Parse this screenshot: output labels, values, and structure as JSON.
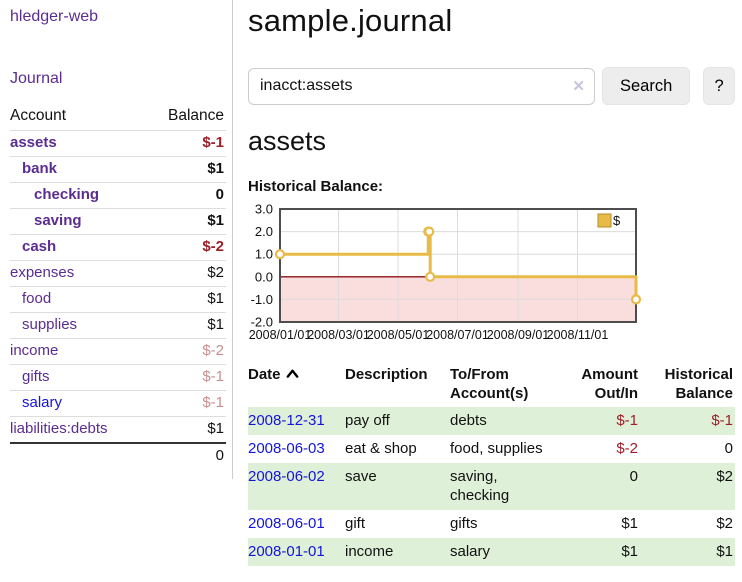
{
  "brand": "hledger-web",
  "nav": {
    "journal_label": "Journal"
  },
  "colors": {
    "purple": "#5b2d90",
    "blue": "#1414dd",
    "negative": "#9d1f27",
    "negative_faded": "#c98f8f",
    "row_green": "#dff0d8",
    "button_bg": "#ededed",
    "input_border": "#cccccc",
    "divider": "#cccccc",
    "clear_icon": "#c9c2dc",
    "chart_line": "#e8bb49",
    "chart_legend_fill": "#e8bb49",
    "chart_legend_border": "#b28d28",
    "chart_negative_region": "#fadddd",
    "chart_zero_line": "#8e1216",
    "chart_border": "#4d4d4d",
    "chart_grid": "#dcdcdc"
  },
  "sidebar_table": {
    "headers": [
      "Account",
      "Balance"
    ],
    "rows": [
      {
        "name": "assets",
        "balance": "$-1",
        "level": 1,
        "bold": true,
        "balance_color": "negative"
      },
      {
        "name": "bank",
        "balance": "$1",
        "level": 2,
        "bold": true,
        "balance_color": "normal"
      },
      {
        "name": "checking",
        "balance": "0",
        "level": 3,
        "bold": true,
        "balance_color": "normal"
      },
      {
        "name": "saving",
        "balance": "$1",
        "level": 3,
        "bold": true,
        "balance_color": "normal"
      },
      {
        "name": "cash",
        "balance": "$-2",
        "level": 2,
        "bold": true,
        "balance_color": "negative"
      },
      {
        "name": "expenses",
        "balance": "$2",
        "level": 1,
        "bold": false,
        "balance_color": "normal"
      },
      {
        "name": "food",
        "balance": "$1",
        "level": 2,
        "bold": false,
        "balance_color": "normal"
      },
      {
        "name": "supplies",
        "balance": "$1",
        "level": 2,
        "bold": false,
        "balance_color": "normal"
      },
      {
        "name": "income",
        "balance": "$-2",
        "level": 1,
        "bold": false,
        "balance_color": "negative-faded"
      },
      {
        "name": "gifts",
        "balance": "$-1",
        "level": 2,
        "bold": false,
        "balance_color": "negative-faded"
      },
      {
        "name": "salary",
        "balance": "$-1",
        "level": 2,
        "bold": false,
        "balance_color": "negative-faded",
        "link_color": "blue"
      },
      {
        "name": "liabilities:debts",
        "balance": "$1",
        "level": 1,
        "bold": false,
        "balance_color": "normal"
      }
    ],
    "total": "0"
  },
  "header": {
    "title": "sample.journal"
  },
  "search": {
    "value": "inacct:assets",
    "clear_icon": "✕",
    "button_label": "Search",
    "help_label": "?"
  },
  "account_page": {
    "heading": "assets",
    "chart_label": "Historical Balance:"
  },
  "icons": {
    "sort_ascending": "chevron-up",
    "clear_search": "x-mark",
    "legend_swatch": "filled-square"
  },
  "chart_data": {
    "type": "line",
    "title": "Historical Balance:",
    "line_style": "step-after",
    "grid": true,
    "legend_position": "top-right",
    "negative_region_shaded": true,
    "ylim": [
      -2,
      3
    ],
    "yticks": [
      3.0,
      2.0,
      1.0,
      0.0,
      -1.0,
      -2.0
    ],
    "x_total_days": 365,
    "xticks": [
      {
        "label": "2008/01/01",
        "day": 0
      },
      {
        "label": "2008/03/01",
        "day": 60
      },
      {
        "label": "2008/05/01",
        "day": 121
      },
      {
        "label": "2008/07/01",
        "day": 182
      },
      {
        "label": "2008/09/01",
        "day": 244
      },
      {
        "label": "2008/11/01",
        "day": 305
      }
    ],
    "series": [
      {
        "name": "$",
        "points": [
          {
            "date": "2008-01-01",
            "day": 0,
            "value": 1
          },
          {
            "date": "2008-06-01",
            "day": 152,
            "value": 2
          },
          {
            "date": "2008-06-02",
            "day": 153,
            "value": 2
          },
          {
            "date": "2008-06-03",
            "day": 154,
            "value": 0
          },
          {
            "date": "2008-12-31",
            "day": 365,
            "value": -1
          }
        ]
      }
    ]
  },
  "register_table": {
    "headers": {
      "date": "Date",
      "description": "Description",
      "tofrom": "To/From Account(s)",
      "amount": "Amount Out/In",
      "balance": "Historical Balance"
    },
    "rows": [
      {
        "date": "2008-12-31",
        "description": "pay off",
        "tofrom": "debts",
        "amount": "$-1",
        "balance": "$-1",
        "amount_neg": true,
        "balance_neg": true
      },
      {
        "date": "2008-06-03",
        "description": "eat & shop",
        "tofrom": "food, supplies",
        "amount": "$-2",
        "balance": "0",
        "amount_neg": true,
        "balance_neg": false
      },
      {
        "date": "2008-06-02",
        "description": "save",
        "tofrom": "saving, checking",
        "amount": "0",
        "balance": "$2",
        "amount_neg": false,
        "balance_neg": false
      },
      {
        "date": "2008-06-01",
        "description": "gift",
        "tofrom": "gifts",
        "amount": "$1",
        "balance": "$2",
        "amount_neg": false,
        "balance_neg": false
      },
      {
        "date": "2008-01-01",
        "description": "income",
        "tofrom": "salary",
        "amount": "$1",
        "balance": "$1",
        "amount_neg": false,
        "balance_neg": false
      }
    ]
  }
}
